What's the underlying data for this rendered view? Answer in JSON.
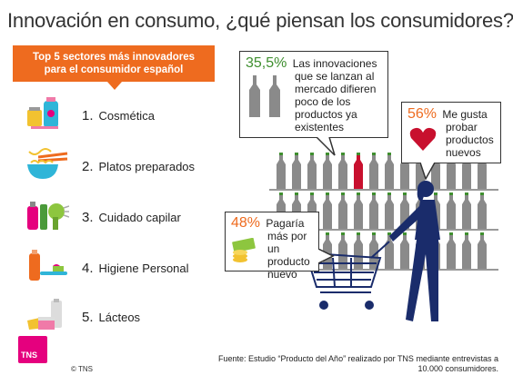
{
  "title": "Innovación en consumo, ¿qué piensan los consumidores?",
  "banner": {
    "line1": "Top 5 sectores más innovadores",
    "line2": "para el consumidor español"
  },
  "sectors": [
    {
      "num": "1.",
      "label": "Cosmética",
      "icon": "cosmetics-icon"
    },
    {
      "num": "2.",
      "label": "Platos preparados",
      "icon": "noodle-bowl-icon"
    },
    {
      "num": "3.",
      "label": "Cuidado capilar",
      "icon": "hair-care-icon"
    },
    {
      "num": "4.",
      "label": "Higiene Personal",
      "icon": "toothpaste-icon"
    },
    {
      "num": "5.",
      "label": "Lácteos",
      "icon": "dairy-icon"
    }
  ],
  "bubbles": {
    "innovations": {
      "pct": "35,5%",
      "line1": "Las innovaciones",
      "rest": [
        "que se lanzan al",
        "mercado difieren",
        "poco de los",
        "productos ya",
        "existentes"
      ]
    },
    "like": {
      "pct": "56%",
      "line1": "Me gusta",
      "rest": [
        "probar",
        "productos",
        "nuevos"
      ]
    },
    "pay": {
      "pct": "48%",
      "line1": "Pagaría",
      "rest": [
        "más por un",
        "producto",
        "nuevo"
      ]
    }
  },
  "colors": {
    "orange": "#ee6b1f",
    "green": "#3f8f2f",
    "navy": "#1a2c6b",
    "red": "#c8102e",
    "bottle": "#8a8a8a",
    "brand": "#e5007e"
  },
  "footer": {
    "logo": "TNS",
    "copyright": "© TNS",
    "source_line1": "Fuente: Estudio “Producto del Año” realizado por TNS mediante entrevistas a",
    "source_line2": "10.000 consumidores."
  }
}
